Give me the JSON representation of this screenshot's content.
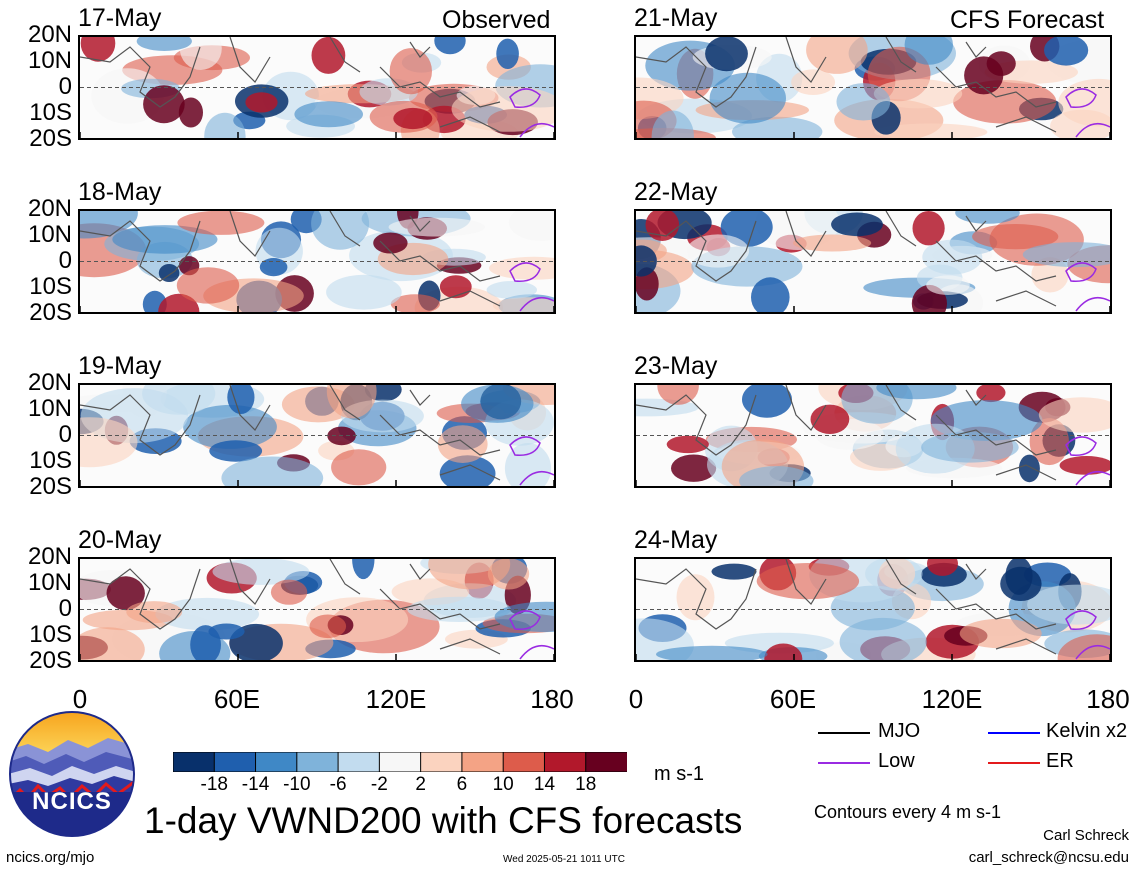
{
  "header": {
    "observed_label": "Observed",
    "forecast_label": "CFS Forecast"
  },
  "chart_data": {
    "type": "heatmap",
    "title": "1-day VWND200 with CFS forecasts",
    "unit": "m s-1",
    "lat_ticks": [
      "20N",
      "10N",
      "0",
      "10S",
      "20S"
    ],
    "lon_ticks": [
      "0",
      "60E",
      "120E",
      "180"
    ],
    "xlim": [
      0,
      180
    ],
    "ylim": [
      -20,
      20
    ],
    "observed_dates": [
      "17-May",
      "18-May",
      "19-May",
      "20-May"
    ],
    "forecast_dates": [
      "21-May",
      "22-May",
      "23-May",
      "24-May"
    ],
    "colorbar": {
      "ticks": [
        "-18",
        "-14",
        "-10",
        "-6",
        "-2",
        "2",
        "6",
        "10",
        "14",
        "18"
      ],
      "colors": [
        "#08306b",
        "#1f5fae",
        "#3f88c6",
        "#7fb3da",
        "#c2dcef",
        "#f7f7f7",
        "#fbd3bf",
        "#f4a385",
        "#dd5c4b",
        "#b2182b",
        "#67001f"
      ]
    },
    "legend": [
      {
        "name": "MJO",
        "color": "#000000"
      },
      {
        "name": "Kelvin x2",
        "color": "#0000ff"
      },
      {
        "name": "Low",
        "color": "#9a2be2"
      },
      {
        "name": "ER",
        "color": "#e31a1c"
      }
    ]
  },
  "footer": {
    "contour_note": "Contours every 4 m s-1",
    "author": "Carl Schreck",
    "email": "carl_schreck@ncsu.edu",
    "site": "ncics.org/mjo",
    "timestamp": "Wed 2025-05-21 1011 UTC",
    "logo_text": "NCICS"
  }
}
